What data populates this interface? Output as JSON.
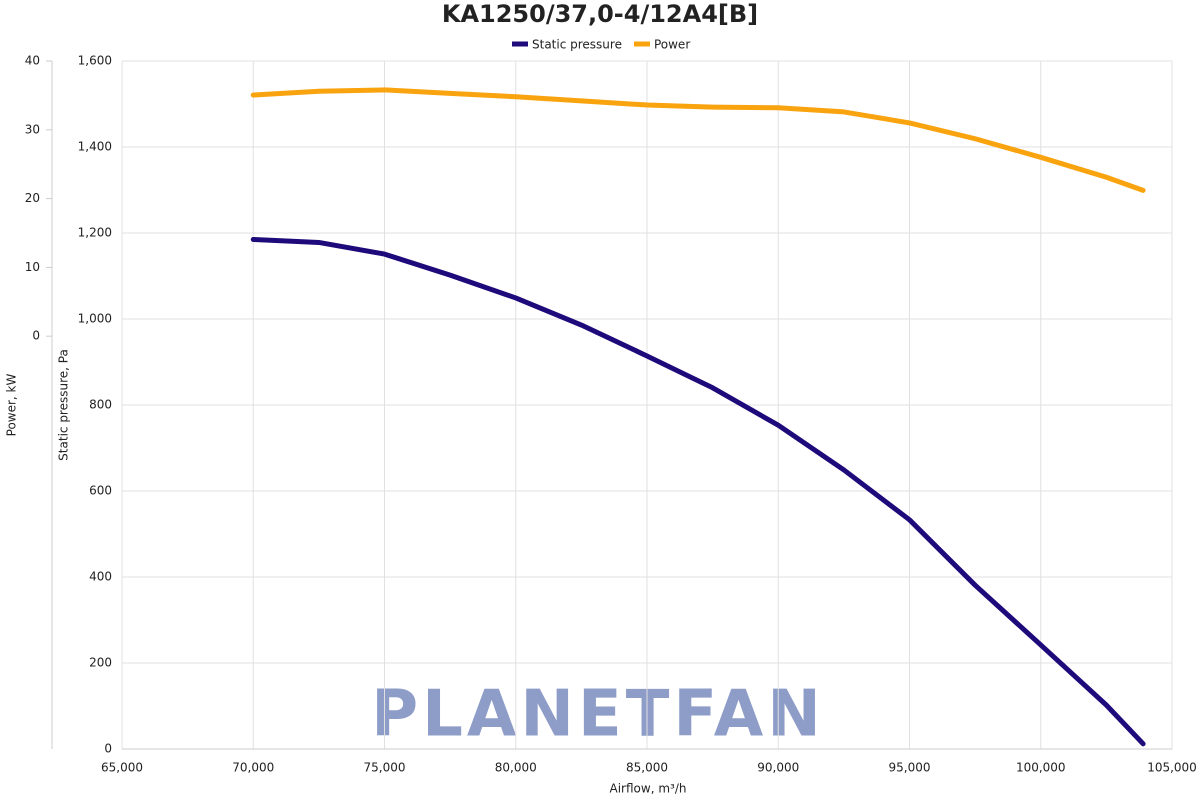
{
  "chart_data": {
    "type": "line",
    "title": "KA1250/37,0-4/12A4[B]",
    "x_label": "Airflow, m³/h",
    "y_label": "Static pressure, Pa",
    "y2_label": "Power, kW",
    "watermark": "PLANETFAN",
    "x": [
      70000,
      72500,
      75000,
      77500,
      80000,
      82500,
      85000,
      87500,
      90000,
      92500,
      95000,
      97500,
      100000,
      102500,
      103900
    ],
    "series": [
      {
        "name": "Static pressure",
        "color": "#1e0a7a",
        "values": [
          1185,
          1178,
          1151,
          1102,
          1049,
          986,
          914,
          840,
          753,
          649,
          533,
          381,
          242,
          102,
          12
        ]
      },
      {
        "name": "Power",
        "color": "#f9a30f",
        "axis": "y2",
        "values": [
          35.05,
          35.6,
          35.8,
          35.3,
          34.8,
          34.2,
          33.6,
          33.3,
          33.2,
          32.6,
          31.0,
          28.7,
          26.0,
          23.1,
          21.2
        ]
      }
    ],
    "xlim": [
      65000,
      105000
    ],
    "xticks": [
      {
        "value": 65000,
        "label": "65,000"
      },
      {
        "value": 70000,
        "label": "70,000"
      },
      {
        "value": 75000,
        "label": "75,000"
      },
      {
        "value": 80000,
        "label": "80,000"
      },
      {
        "value": 85000,
        "label": "85,000"
      },
      {
        "value": 90000,
        "label": "90,000"
      },
      {
        "value": 95000,
        "label": "95,000"
      },
      {
        "value": 100000,
        "label": "100,000"
      },
      {
        "value": 105000,
        "label": "105,000"
      }
    ],
    "ylim": [
      0,
      1600
    ],
    "yticks": [
      0,
      200,
      400,
      600,
      800,
      {
        "value": 1000,
        "label": "1,000"
      },
      {
        "value": 1200,
        "label": "1,200"
      },
      {
        "value": 1400,
        "label": "1,400"
      },
      {
        "value": 1600,
        "label": "1,600"
      }
    ],
    "y2lim": [
      -60,
      40
    ],
    "y2ticks": [
      0,
      10,
      20,
      30,
      40
    ],
    "grid": true,
    "legend": "top"
  }
}
